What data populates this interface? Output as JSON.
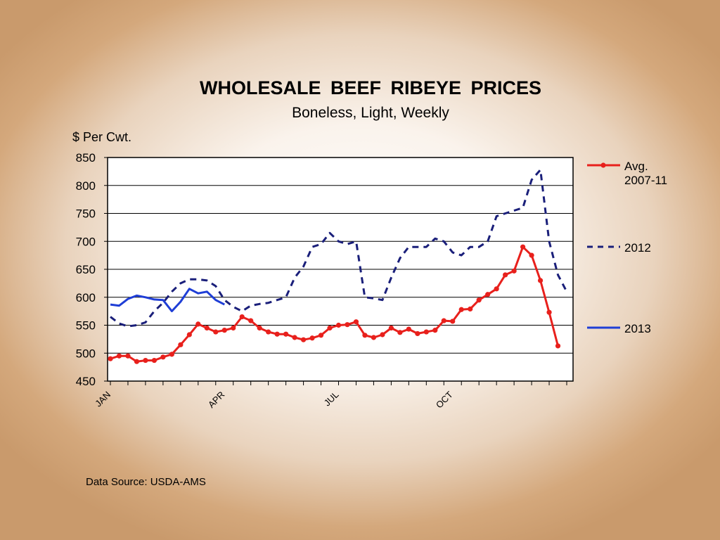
{
  "slide": {
    "data_source": "Data Source: USDA-AMS"
  },
  "chart_data": {
    "type": "line",
    "title": "WHOLESALE  BEEF  RIBEYE  PRICES",
    "subtitle": "Boneless, Light, Weekly",
    "ylabel": "$ Per Cwt.",
    "xlabel": "",
    "ylim": [
      450,
      850
    ],
    "yticks": [
      450,
      500,
      550,
      600,
      650,
      700,
      750,
      800,
      850
    ],
    "x_range_weeks": [
      1,
      53
    ],
    "x_tick_labels": [
      {
        "label": "JAN",
        "week": 1
      },
      {
        "label": "APR",
        "week": 14
      },
      {
        "label": "JUL",
        "week": 27
      },
      {
        "label": "OCT",
        "week": 40
      }
    ],
    "grid": true,
    "legend_position": "right",
    "colors": {
      "avg": "#e8201c",
      "y2012": "#1a1f7a",
      "y2013": "#1f3ed6"
    },
    "series": [
      {
        "name": "Avg.\n2007-11",
        "style": "solid-markers",
        "values": [
          490,
          495,
          495,
          485,
          487,
          487,
          493,
          498,
          515,
          533,
          552,
          545,
          538,
          541,
          545,
          565,
          558,
          545,
          538,
          534,
          534,
          528,
          524,
          527,
          532,
          545,
          550,
          551,
          556,
          532,
          528,
          533,
          545,
          537,
          543,
          535,
          538,
          541,
          558,
          557,
          578,
          579,
          595,
          605,
          615,
          640,
          647,
          690,
          675,
          630,
          573,
          513
        ]
      },
      {
        "name": "2012",
        "style": "dashed",
        "values": [
          565,
          553,
          548,
          550,
          555,
          575,
          590,
          610,
          625,
          632,
          632,
          630,
          620,
          595,
          583,
          575,
          585,
          588,
          590,
          595,
          600,
          635,
          655,
          690,
          695,
          715,
          700,
          695,
          700,
          600,
          598,
          595,
          635,
          670,
          690,
          690,
          690,
          705,
          700,
          680,
          675,
          690,
          690,
          700,
          745,
          750,
          755,
          760,
          810,
          828,
          700,
          640,
          610
        ]
      },
      {
        "name": "2013",
        "style": "solid",
        "values": [
          587,
          585,
          597,
          603,
          600,
          596,
          595,
          575,
          592,
          615,
          607,
          610,
          595,
          587
        ]
      }
    ]
  }
}
